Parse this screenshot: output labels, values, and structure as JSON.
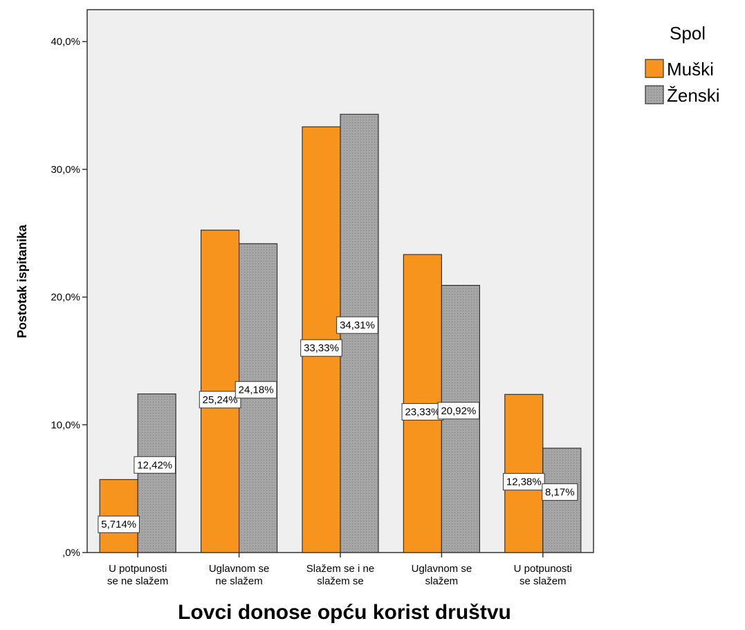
{
  "chart_data": {
    "type": "bar",
    "xlabel": "Lovci donose opću korist društvu",
    "ylabel": "Postotak ispitanika",
    "ylim": [
      0,
      42.5
    ],
    "yticks": [
      {
        "value": 0,
        "label": ",0%"
      },
      {
        "value": 10,
        "label": "10,0%"
      },
      {
        "value": 20,
        "label": "20,0%"
      },
      {
        "value": 30,
        "label": "30,0%"
      },
      {
        "value": 40,
        "label": "40,0%"
      }
    ],
    "categories": [
      [
        "U potpunosti",
        "se ne slažem"
      ],
      [
        "Uglavnom se",
        "ne slažem"
      ],
      [
        "Slažem se i ne",
        "slažem se"
      ],
      [
        "Uglavnom se",
        "slažem"
      ],
      [
        "U potpunosti",
        "se slažem"
      ]
    ],
    "legend": {
      "title": "Spol",
      "position": "right"
    },
    "series": [
      {
        "name": "Muški",
        "color": "#f7941d",
        "pattern": "solid",
        "values": [
          5.714,
          25.24,
          33.33,
          23.33,
          12.38
        ],
        "labels": [
          "5,714%",
          "25,24%",
          "33,33%",
          "23,33%",
          "12,38%"
        ]
      },
      {
        "name": "Ženski",
        "color": "#a6a6a6",
        "pattern": "dotted",
        "values": [
          12.42,
          24.18,
          34.31,
          20.92,
          8.17
        ],
        "labels": [
          "12,42%",
          "24,18%",
          "34,31%",
          "20,92%",
          "8,17%"
        ]
      }
    ],
    "plot_background": "#efefef",
    "grid": false
  }
}
